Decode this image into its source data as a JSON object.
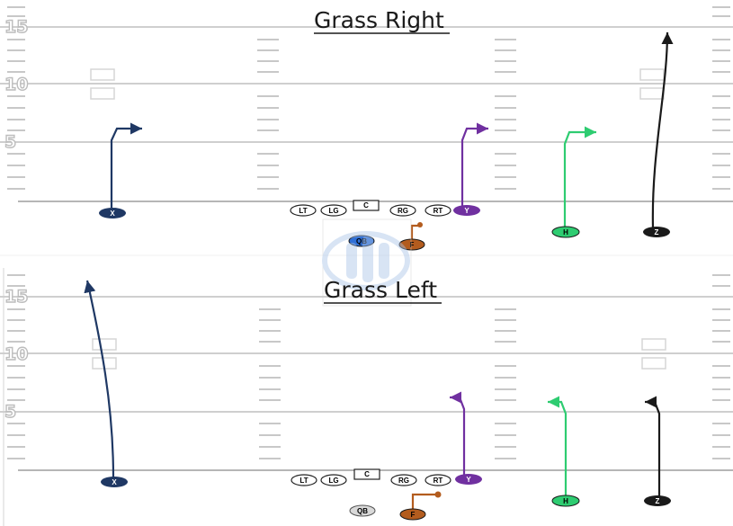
{
  "diagrams": [
    {
      "title": "Grass Right",
      "yard_labels": [
        "15",
        "10",
        "5"
      ],
      "line": [
        {
          "label": "LT",
          "fill": "#ffffff",
          "text": "#000000"
        },
        {
          "label": "LG",
          "fill": "#ffffff",
          "text": "#000000"
        },
        {
          "label": "C",
          "fill": "#ffffff",
          "text": "#000000",
          "shape": "rect"
        },
        {
          "label": "RG",
          "fill": "#ffffff",
          "text": "#000000"
        },
        {
          "label": "RT",
          "fill": "#ffffff",
          "text": "#000000"
        }
      ],
      "skill": [
        {
          "label": "X",
          "fill": "#1f3864",
          "route": "5-yard out right"
        },
        {
          "label": "Y",
          "fill": "#7030a0",
          "route": "5-yard out right"
        },
        {
          "label": "H",
          "fill": "#2ecc71",
          "route": "5-yard out right"
        },
        {
          "label": "Z",
          "fill": "#1a1a1a",
          "route": "go"
        },
        {
          "label": "QB",
          "fill": "#2f6fd6"
        },
        {
          "label": "F",
          "fill": "#b35c1e",
          "route": "flat"
        }
      ]
    },
    {
      "title": "Grass Left",
      "yard_labels": [
        "15",
        "10",
        "5"
      ],
      "line": [
        {
          "label": "LT",
          "fill": "#ffffff",
          "text": "#000000"
        },
        {
          "label": "LG",
          "fill": "#ffffff",
          "text": "#000000"
        },
        {
          "label": "C",
          "fill": "#ffffff",
          "text": "#000000",
          "shape": "rect"
        },
        {
          "label": "RG",
          "fill": "#ffffff",
          "text": "#000000"
        },
        {
          "label": "RT",
          "fill": "#ffffff",
          "text": "#000000"
        }
      ],
      "skill": [
        {
          "label": "X",
          "fill": "#1f3864",
          "route": "go"
        },
        {
          "label": "Y",
          "fill": "#7030a0",
          "route": "5-yard out left"
        },
        {
          "label": "H",
          "fill": "#2ecc71",
          "route": "5-yard out left"
        },
        {
          "label": "Z",
          "fill": "#1a1a1a",
          "route": "5-yard out left"
        },
        {
          "label": "QB",
          "fill": "#d9d9d9"
        },
        {
          "label": "F",
          "fill": "#b35c1e",
          "route": "flat"
        }
      ]
    }
  ],
  "colors": {
    "field_lines": "#cfcfcf",
    "hash_marks": "#c8c8c8",
    "watermark": "#aac4e8"
  }
}
